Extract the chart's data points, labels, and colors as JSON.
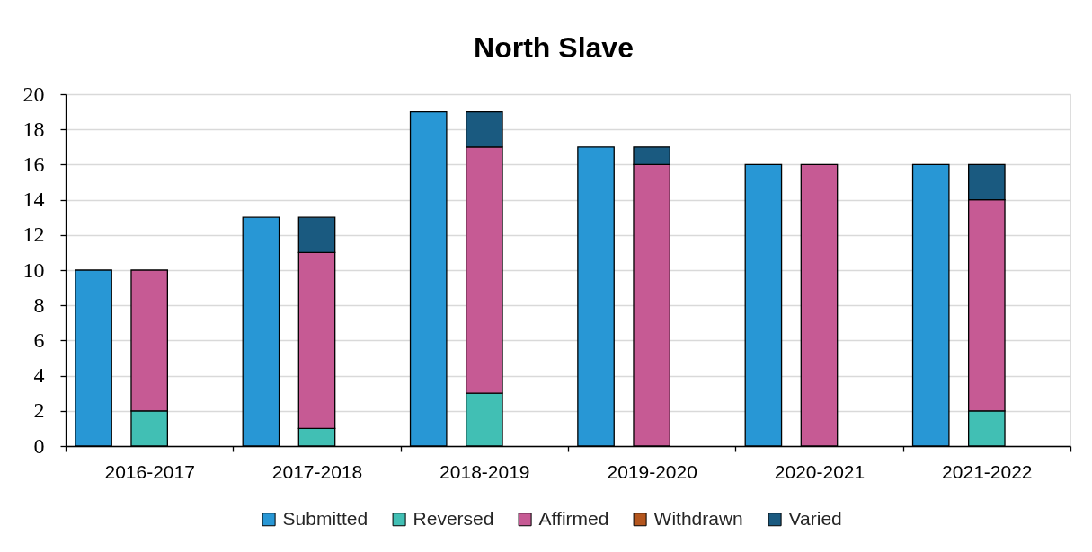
{
  "chart_data": {
    "type": "bar",
    "title": "North Slave",
    "categories": [
      "2016-2017",
      "2017-2018",
      "2018-2019",
      "2019-2020",
      "2020-2021",
      "2021-2022"
    ],
    "series": [
      {
        "name": "Submitted",
        "color": "#2897d5",
        "values": [
          10,
          13,
          19,
          17,
          16,
          16
        ]
      },
      {
        "name": "Reversed",
        "color": "#41bfb4",
        "values": [
          2,
          1,
          3,
          0,
          0,
          2
        ],
        "base": [
          0,
          0,
          0,
          null,
          null,
          0
        ]
      },
      {
        "name": "Affirmed",
        "color": "#c65a94",
        "values": [
          8,
          10,
          14,
          16,
          16,
          12
        ],
        "base": [
          2,
          1,
          3,
          0,
          0,
          2
        ]
      },
      {
        "name": "Withdrawn",
        "color": "#b4561e",
        "values": [
          0,
          0,
          0,
          0,
          0,
          0
        ],
        "base": [
          null,
          null,
          null,
          null,
          null,
          null
        ]
      },
      {
        "name": "Varied",
        "color": "#1a5a80",
        "values": [
          0,
          2,
          2,
          1,
          0,
          2
        ],
        "base": [
          null,
          11,
          17,
          16,
          null,
          14
        ]
      }
    ],
    "ylim": [
      0,
      20
    ],
    "yticks": [
      0,
      2,
      4,
      6,
      8,
      10,
      12,
      14,
      16,
      18,
      20
    ],
    "grid": "y",
    "legend": "bottom"
  }
}
